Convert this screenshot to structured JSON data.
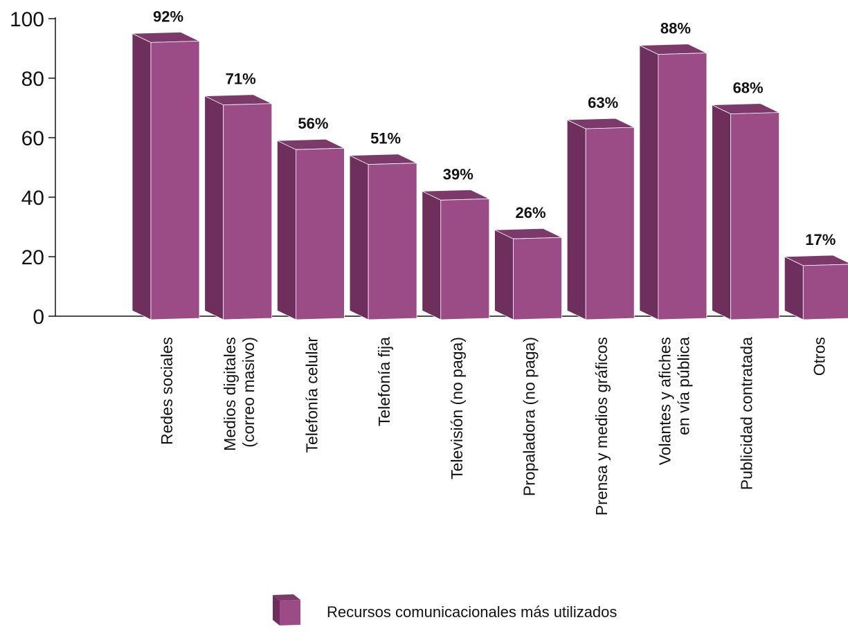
{
  "chart_data": {
    "type": "bar",
    "categories": [
      [
        "Redes sociales"
      ],
      [
        "Medios digitales",
        "(correo masivo)"
      ],
      [
        "Telefonía celular"
      ],
      [
        "Telefonía fija"
      ],
      [
        "Televisión (no paga)"
      ],
      [
        "Propaladora (no paga)"
      ],
      [
        "Prensa y medios gráficos"
      ],
      [
        "Volantes y afiches",
        "en vía pública"
      ],
      [
        "Publicidad contratada"
      ],
      [
        "Otros"
      ]
    ],
    "series": [
      {
        "name": "Recursos comunicacionales más utilizados",
        "values": [
          92,
          71,
          56,
          51,
          39,
          26,
          63,
          88,
          68,
          17
        ],
        "data_labels": [
          "92%",
          "71%",
          "56%",
          "51%",
          "39%",
          "26%",
          "63%",
          "88%",
          "68%",
          "17%"
        ]
      }
    ],
    "ylim": [
      0,
      100
    ],
    "yticks": [
      "0",
      "20",
      "40",
      "60",
      "80",
      "100"
    ],
    "grid": false,
    "legend_position": "bottom-center",
    "colors": {
      "bar_front": "#9b4b85",
      "bar_side": "#6e2f5c",
      "bar_top": "#7c3a6b"
    }
  }
}
